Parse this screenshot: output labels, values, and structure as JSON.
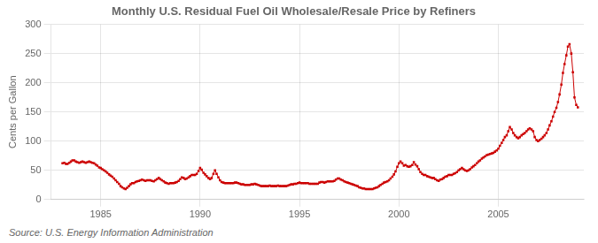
{
  "chart_data": {
    "type": "line",
    "title": "Monthly U.S. Residual Fuel Oil Wholesale/Resale Price by Refiners",
    "ylabel": "Cents per Gallon",
    "annotations": [
      "Source: U.S. Energy Information Administration"
    ],
    "color": "#cc0000",
    "marker": "square",
    "grid": true,
    "xlim": [
      1982.5,
      2009.3
    ],
    "xticks": [
      1985,
      1990,
      1995,
      2000,
      2005
    ],
    "ylim": [
      0,
      300
    ],
    "yticks": [
      0,
      50,
      100,
      150,
      200,
      250,
      300
    ],
    "x": [
      1983.08,
      1983.17,
      1983.25,
      1983.33,
      1983.42,
      1983.5,
      1983.58,
      1983.67,
      1983.75,
      1983.83,
      1983.92,
      1984.0,
      1984.08,
      1984.17,
      1984.25,
      1984.33,
      1984.42,
      1984.5,
      1984.58,
      1984.67,
      1984.75,
      1984.83,
      1984.92,
      1985.0,
      1985.08,
      1985.17,
      1985.25,
      1985.33,
      1985.42,
      1985.5,
      1985.58,
      1985.67,
      1985.75,
      1985.83,
      1985.92,
      1986.0,
      1986.08,
      1986.17,
      1986.25,
      1986.33,
      1986.42,
      1986.5,
      1986.58,
      1986.67,
      1986.75,
      1986.83,
      1986.92,
      1987.0,
      1987.08,
      1987.17,
      1987.25,
      1987.33,
      1987.42,
      1987.5,
      1987.58,
      1987.67,
      1987.75,
      1987.83,
      1987.92,
      1988.0,
      1988.08,
      1988.17,
      1988.25,
      1988.33,
      1988.42,
      1988.5,
      1988.58,
      1988.67,
      1988.75,
      1988.83,
      1988.92,
      1989.0,
      1989.08,
      1989.17,
      1989.25,
      1989.33,
      1989.42,
      1989.5,
      1989.58,
      1989.67,
      1989.75,
      1989.83,
      1989.92,
      1990.0,
      1990.08,
      1990.17,
      1990.25,
      1990.33,
      1990.42,
      1990.5,
      1990.58,
      1990.67,
      1990.75,
      1990.83,
      1990.92,
      1991.0,
      1991.08,
      1991.17,
      1991.25,
      1991.33,
      1991.42,
      1991.5,
      1991.58,
      1991.67,
      1991.75,
      1991.83,
      1991.92,
      1992.0,
      1992.08,
      1992.17,
      1992.25,
      1992.33,
      1992.42,
      1992.5,
      1992.58,
      1992.67,
      1992.75,
      1992.83,
      1992.92,
      1993.0,
      1993.08,
      1993.17,
      1993.25,
      1993.33,
      1993.42,
      1993.5,
      1993.58,
      1993.67,
      1993.75,
      1993.83,
      1993.92,
      1994.0,
      1994.08,
      1994.17,
      1994.25,
      1994.33,
      1994.42,
      1994.5,
      1994.58,
      1994.67,
      1994.75,
      1994.83,
      1994.92,
      1995.0,
      1995.08,
      1995.17,
      1995.25,
      1995.33,
      1995.42,
      1995.5,
      1995.58,
      1995.67,
      1995.75,
      1995.83,
      1995.92,
      1996.0,
      1996.08,
      1996.17,
      1996.25,
      1996.33,
      1996.42,
      1996.5,
      1996.58,
      1996.67,
      1996.75,
      1996.83,
      1996.92,
      1997.0,
      1997.08,
      1997.17,
      1997.25,
      1997.33,
      1997.42,
      1997.5,
      1997.58,
      1997.67,
      1997.75,
      1997.83,
      1997.92,
      1998.0,
      1998.08,
      1998.17,
      1998.25,
      1998.33,
      1998.42,
      1998.5,
      1998.58,
      1998.67,
      1998.75,
      1998.83,
      1998.92,
      1999.0,
      1999.08,
      1999.17,
      1999.25,
      1999.33,
      1999.42,
      1999.5,
      1999.58,
      1999.67,
      1999.75,
      1999.83,
      1999.92,
      2000.0,
      2000.08,
      2000.17,
      2000.25,
      2000.33,
      2000.42,
      2000.5,
      2000.58,
      2000.67,
      2000.75,
      2000.83,
      2000.92,
      2001.0,
      2001.08,
      2001.17,
      2001.25,
      2001.33,
      2001.42,
      2001.5,
      2001.58,
      2001.67,
      2001.75,
      2001.83,
      2001.92,
      2002.0,
      2002.08,
      2002.17,
      2002.25,
      2002.33,
      2002.42,
      2002.5,
      2002.58,
      2002.67,
      2002.75,
      2002.83,
      2002.92,
      2003.0,
      2003.08,
      2003.17,
      2003.25,
      2003.33,
      2003.42,
      2003.5,
      2003.58,
      2003.67,
      2003.75,
      2003.83,
      2003.92,
      2004.0,
      2004.08,
      2004.17,
      2004.25,
      2004.33,
      2004.42,
      2004.5,
      2004.58,
      2004.67,
      2004.75,
      2004.83,
      2004.92,
      2005.0,
      2005.08,
      2005.17,
      2005.25,
      2005.33,
      2005.42,
      2005.5,
      2005.58,
      2005.67,
      2005.75,
      2005.83,
      2005.92,
      2006.0,
      2006.08,
      2006.17,
      2006.25,
      2006.33,
      2006.42,
      2006.5,
      2006.58,
      2006.67,
      2006.75,
      2006.83,
      2006.92,
      2007.0,
      2007.08,
      2007.17,
      2007.25,
      2007.33,
      2007.42,
      2007.5,
      2007.58,
      2007.67,
      2007.75,
      2007.83,
      2007.92,
      2008.0,
      2008.08,
      2008.17,
      2008.25,
      2008.33,
      2008.42,
      2008.5,
      2008.58,
      2008.67,
      2008.75,
      2008.83,
      2008.92,
      2009.0
    ],
    "values": [
      62,
      63,
      61,
      61,
      63,
      65,
      67,
      67,
      65,
      64,
      63,
      64,
      65,
      64,
      63,
      64,
      65,
      64,
      63,
      62,
      60,
      58,
      55,
      54,
      52,
      50,
      48,
      46,
      43,
      41,
      39,
      36,
      33,
      30,
      27,
      23,
      21,
      19,
      18,
      20,
      23,
      26,
      28,
      28,
      30,
      31,
      32,
      33,
      34,
      33,
      32,
      33,
      33,
      33,
      32,
      31,
      33,
      35,
      37,
      35,
      33,
      31,
      29,
      28,
      27,
      28,
      28,
      28,
      29,
      30,
      32,
      35,
      38,
      37,
      35,
      36,
      38,
      40,
      42,
      42,
      42,
      44,
      49,
      54,
      51,
      46,
      43,
      40,
      37,
      35,
      37,
      44,
      50,
      44,
      38,
      33,
      30,
      29,
      28,
      28,
      28,
      28,
      28,
      28,
      29,
      29,
      28,
      27,
      26,
      26,
      25,
      25,
      25,
      25,
      26,
      26,
      27,
      26,
      25,
      24,
      23,
      23,
      23,
      23,
      23,
      24,
      23,
      23,
      23,
      23,
      24,
      23,
      23,
      23,
      23,
      23,
      24,
      25,
      26,
      26,
      27,
      27,
      28,
      29,
      28,
      28,
      28,
      28,
      28,
      27,
      27,
      27,
      27,
      27,
      27,
      29,
      30,
      30,
      29,
      30,
      31,
      31,
      31,
      31,
      32,
      34,
      36,
      36,
      34,
      33,
      31,
      30,
      29,
      28,
      27,
      26,
      25,
      24,
      23,
      21,
      20,
      19,
      19,
      18,
      18,
      18,
      18,
      18,
      19,
      20,
      21,
      23,
      25,
      27,
      29,
      30,
      31,
      33,
      36,
      39,
      43,
      48,
      56,
      62,
      65,
      62,
      58,
      59,
      57,
      56,
      57,
      59,
      64,
      60,
      57,
      52,
      47,
      44,
      42,
      42,
      40,
      39,
      38,
      37,
      37,
      35,
      33,
      32,
      34,
      35,
      37,
      39,
      40,
      42,
      42,
      42,
      44,
      45,
      47,
      50,
      52,
      54,
      52,
      50,
      49,
      50,
      52,
      55,
      57,
      59,
      62,
      65,
      67,
      70,
      72,
      74,
      76,
      77,
      78,
      79,
      80,
      82,
      84,
      87,
      92,
      97,
      102,
      107,
      110,
      117,
      124,
      120,
      114,
      110,
      107,
      105,
      107,
      110,
      112,
      114,
      117,
      120,
      122,
      120,
      117,
      107,
      102,
      100,
      102,
      104,
      107,
      110,
      114,
      120,
      127,
      134,
      142,
      150,
      157,
      167,
      180,
      197,
      217,
      232,
      247,
      262,
      266,
      250,
      218,
      175,
      162,
      158
    ]
  }
}
